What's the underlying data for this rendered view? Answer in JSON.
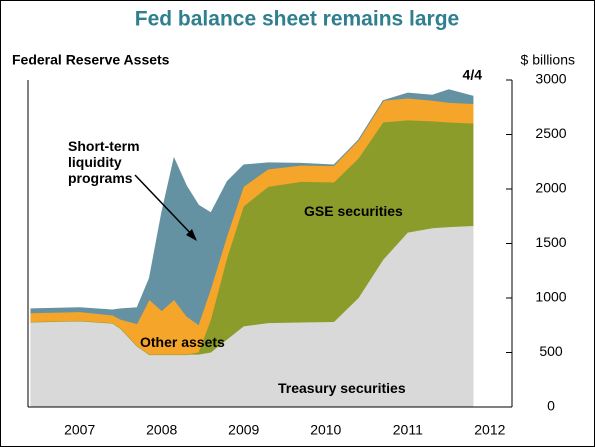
{
  "chart_data": {
    "type": "stacked_area",
    "title": "Fed balance sheet remains large",
    "subtitle": "Federal Reserve Assets",
    "y_axis_label": "$ billions",
    "annotations": [
      "4/4"
    ],
    "x": [
      2006.9,
      2007.5,
      2007.9,
      2008.0,
      2008.2,
      2008.35,
      2008.5,
      2008.65,
      2008.8,
      2008.95,
      2009.1,
      2009.3,
      2009.5,
      2009.8,
      2010.2,
      2010.6,
      2010.9,
      2011.2,
      2011.5,
      2011.8,
      2012.0,
      2012.3
    ],
    "series": [
      {
        "name": "Treasury securities",
        "color": "#d9d9d9",
        "values": [
          780,
          790,
          770,
          720,
          560,
          480,
          480,
          480,
          480,
          480,
          500,
          620,
          740,
          770,
          775,
          780,
          1000,
          1350,
          1600,
          1640,
          1650,
          1660
        ]
      },
      {
        "name": "GSE securities",
        "color": "#8c9c2b",
        "values": [
          0,
          0,
          0,
          0,
          0,
          0,
          0,
          0,
          0,
          20,
          300,
          750,
          1100,
          1250,
          1290,
          1280,
          1280,
          1260,
          1030,
          980,
          960,
          940
        ]
      },
      {
        "name": "Other assets",
        "color": "#f5a52a",
        "values": [
          80,
          80,
          70,
          80,
          200,
          500,
          400,
          500,
          350,
          250,
          280,
          200,
          180,
          160,
          150,
          150,
          170,
          200,
          200,
          190,
          180,
          180
        ]
      },
      {
        "name": "Short-term liquidity programs",
        "color": "#6592a3",
        "values": [
          40,
          40,
          50,
          100,
          150,
          200,
          900,
          1300,
          1200,
          1100,
          700,
          500,
          200,
          60,
          20,
          10,
          0,
          0,
          50,
          50,
          120,
          70
        ]
      }
    ],
    "xlim": [
      2006.87,
      2012.77
    ],
    "xticks": [
      {
        "value": 2007.5,
        "label": "2007"
      },
      {
        "value": 2008.5,
        "label": "2008"
      },
      {
        "value": 2009.5,
        "label": "2009"
      },
      {
        "value": 2010.5,
        "label": "2010"
      },
      {
        "value": 2011.5,
        "label": "2011"
      },
      {
        "value": 2012.5,
        "label": "2012"
      }
    ],
    "ylim": [
      0,
      3000
    ],
    "yticks": [
      0,
      500,
      1000,
      1500,
      2000,
      2500,
      3000
    ],
    "grid": false
  }
}
